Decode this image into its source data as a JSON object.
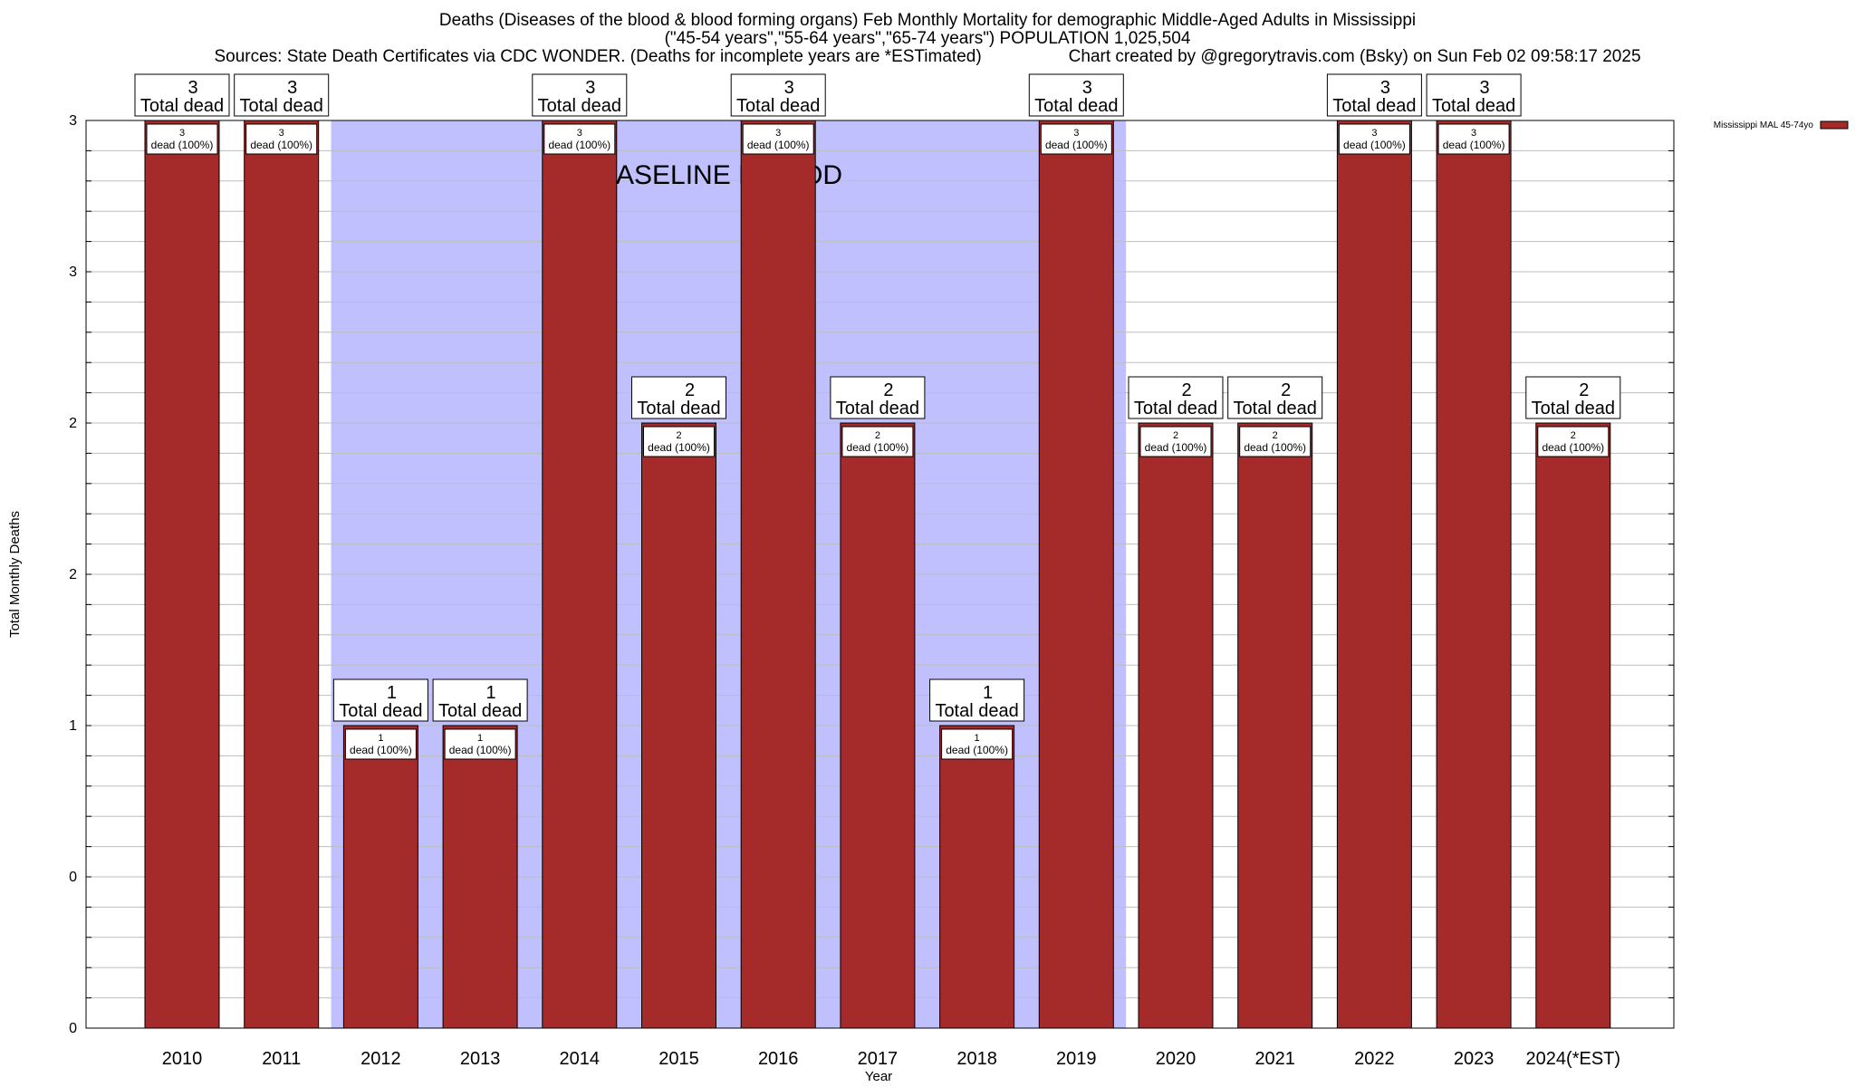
{
  "header": {
    "title_line1": "Deaths (Diseases of the blood & blood forming organs) Feb Monthly Mortality for demographic Middle-Aged Adults in Mississippi",
    "title_line2": "(\"45-54 years\",\"55-64 years\",\"65-74 years\") POPULATION 1,025,504",
    "sources": "Sources: State Death Certificates via CDC WONDER. (Deaths for incomplete years are *ESTimated)",
    "credit": "Chart created by @gregorytravis.com (Bsky) on Sun Feb 02 09:58:17 2025"
  },
  "chart_data": {
    "type": "bar",
    "xlabel": "Year",
    "ylabel": "Total Monthly Deaths",
    "ylim": [
      0,
      3
    ],
    "ytick_labels": [
      "0",
      "0",
      "1",
      "2",
      "2",
      "3"
    ],
    "ytick_values": [
      0,
      0.5,
      1.0,
      1.5,
      2.0,
      2.5
    ],
    "ytop_label": "3",
    "ytop_value": 3,
    "grid": true,
    "legend_position": "top-right",
    "categories": [
      "2010",
      "2011",
      "2012",
      "2013",
      "2014",
      "2015",
      "2016",
      "2017",
      "2018",
      "2019",
      "2020",
      "2021",
      "2022",
      "2023",
      "2024(*EST)"
    ],
    "series": [
      {
        "name": "Mississippi MAL 45-74yo",
        "color": "#a52a2a",
        "values": [
          3,
          3,
          1,
          1,
          3,
          2,
          3,
          2,
          1,
          3,
          2,
          2,
          3,
          3,
          2
        ]
      }
    ],
    "total_label_text": "Total dead",
    "inner_label_text": "dead (100%)",
    "baseline_period": {
      "label": "BASELINE PERIOD",
      "start": "2012",
      "end": "2019",
      "color": "#c0c0ff"
    }
  }
}
